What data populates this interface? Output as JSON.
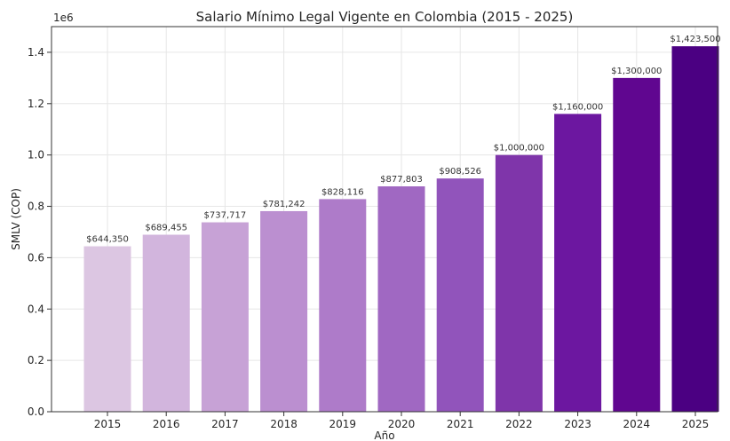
{
  "chart_data": {
    "type": "bar",
    "title": "Salario Mínimo Legal Vigente en Colombia (2015 - 2025)",
    "xlabel": "Año",
    "ylabel": "SMLV (COP)",
    "y_offset_label": "1e6",
    "ylim": [
      0,
      1500000
    ],
    "yticks": [
      0,
      200000,
      400000,
      600000,
      800000,
      1000000,
      1200000,
      1400000
    ],
    "ytick_labels": [
      "0.0",
      "0.2",
      "0.4",
      "0.6",
      "0.8",
      "1.0",
      "1.2",
      "1.4"
    ],
    "grid": true,
    "categories": [
      "2015",
      "2016",
      "2017",
      "2018",
      "2019",
      "2020",
      "2021",
      "2022",
      "2023",
      "2024",
      "2025"
    ],
    "values": [
      644350,
      689455,
      737717,
      781242,
      828116,
      877803,
      908526,
      1000000,
      1160000,
      1300000,
      1423500
    ],
    "data_labels": [
      "$644,350",
      "$689,455",
      "$737,717",
      "$781,242",
      "$828,116",
      "$877,803",
      "$908,526",
      "$1,000,000",
      "$1,160,000",
      "$1,300,000",
      "$1,423,500"
    ],
    "colors": [
      "#dcc6e2",
      "#d2b5dd",
      "#c7a2d6",
      "#bb8fd0",
      "#ae7bc9",
      "#a068c2",
      "#9154bb",
      "#7f35aa",
      "#6c17a0",
      "#600690",
      "#4b0082"
    ]
  }
}
